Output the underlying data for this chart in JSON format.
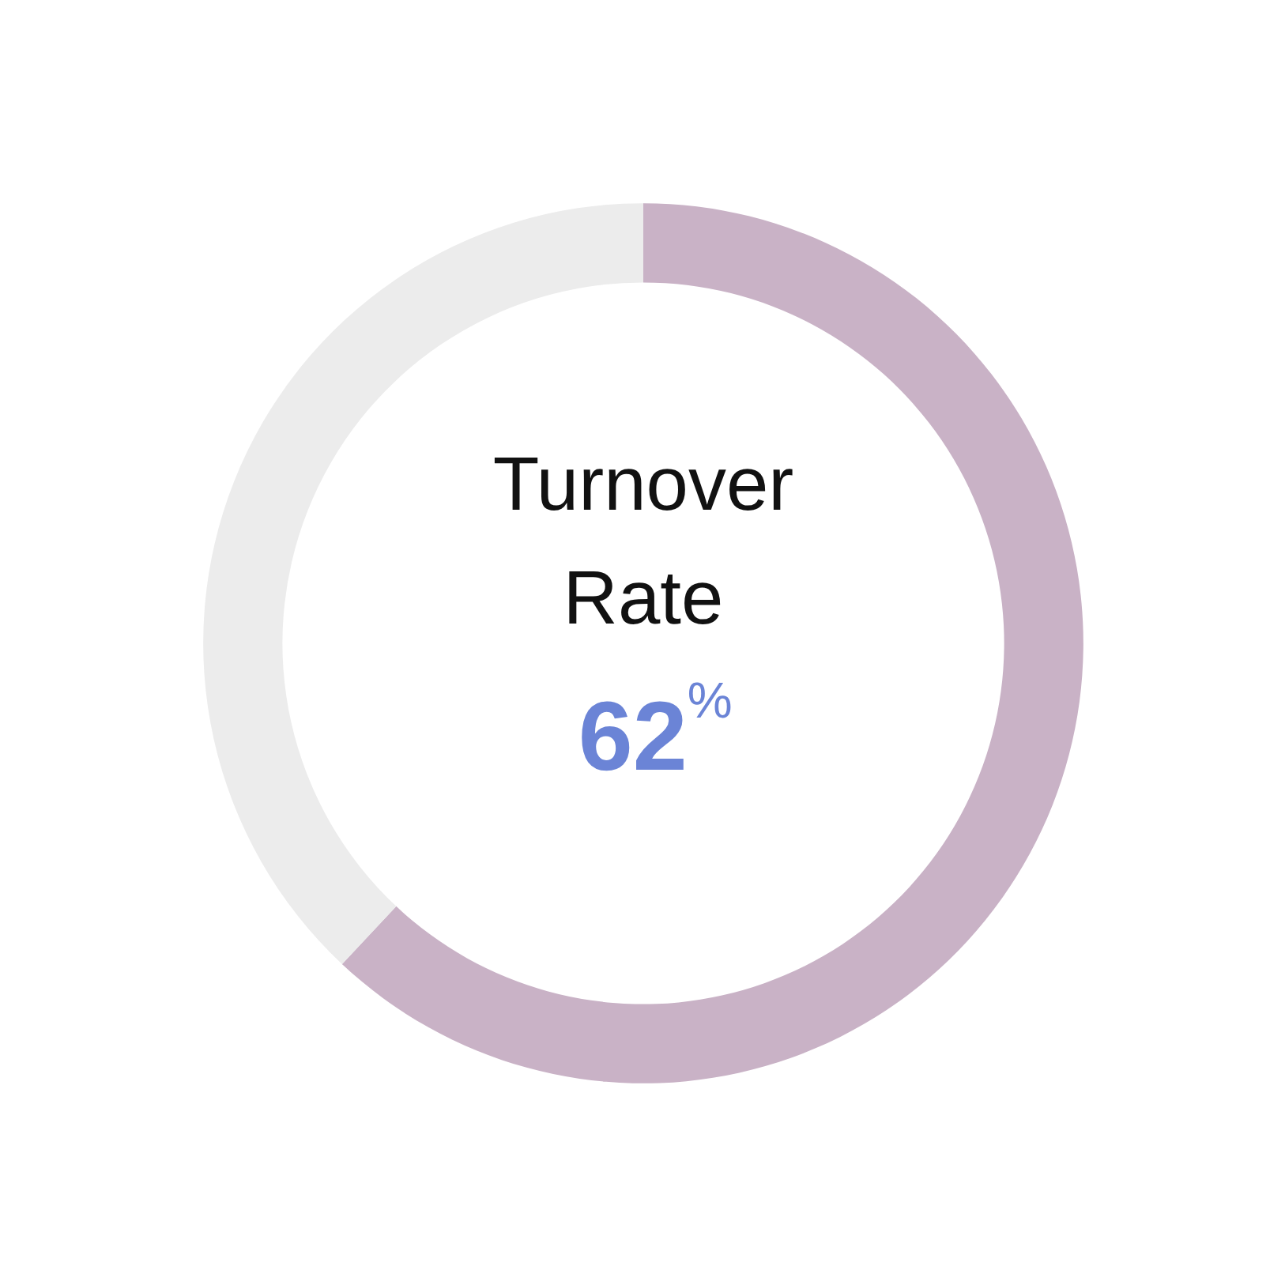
{
  "chart_data": {
    "type": "donut",
    "title": "Turnover Rate",
    "categories": [
      null,
      null
    ],
    "values": [
      62,
      38
    ],
    "colors": [
      "#c9b2c6",
      "#ececec"
    ],
    "value_labels": [
      "62%",
      null
    ]
  }
}
